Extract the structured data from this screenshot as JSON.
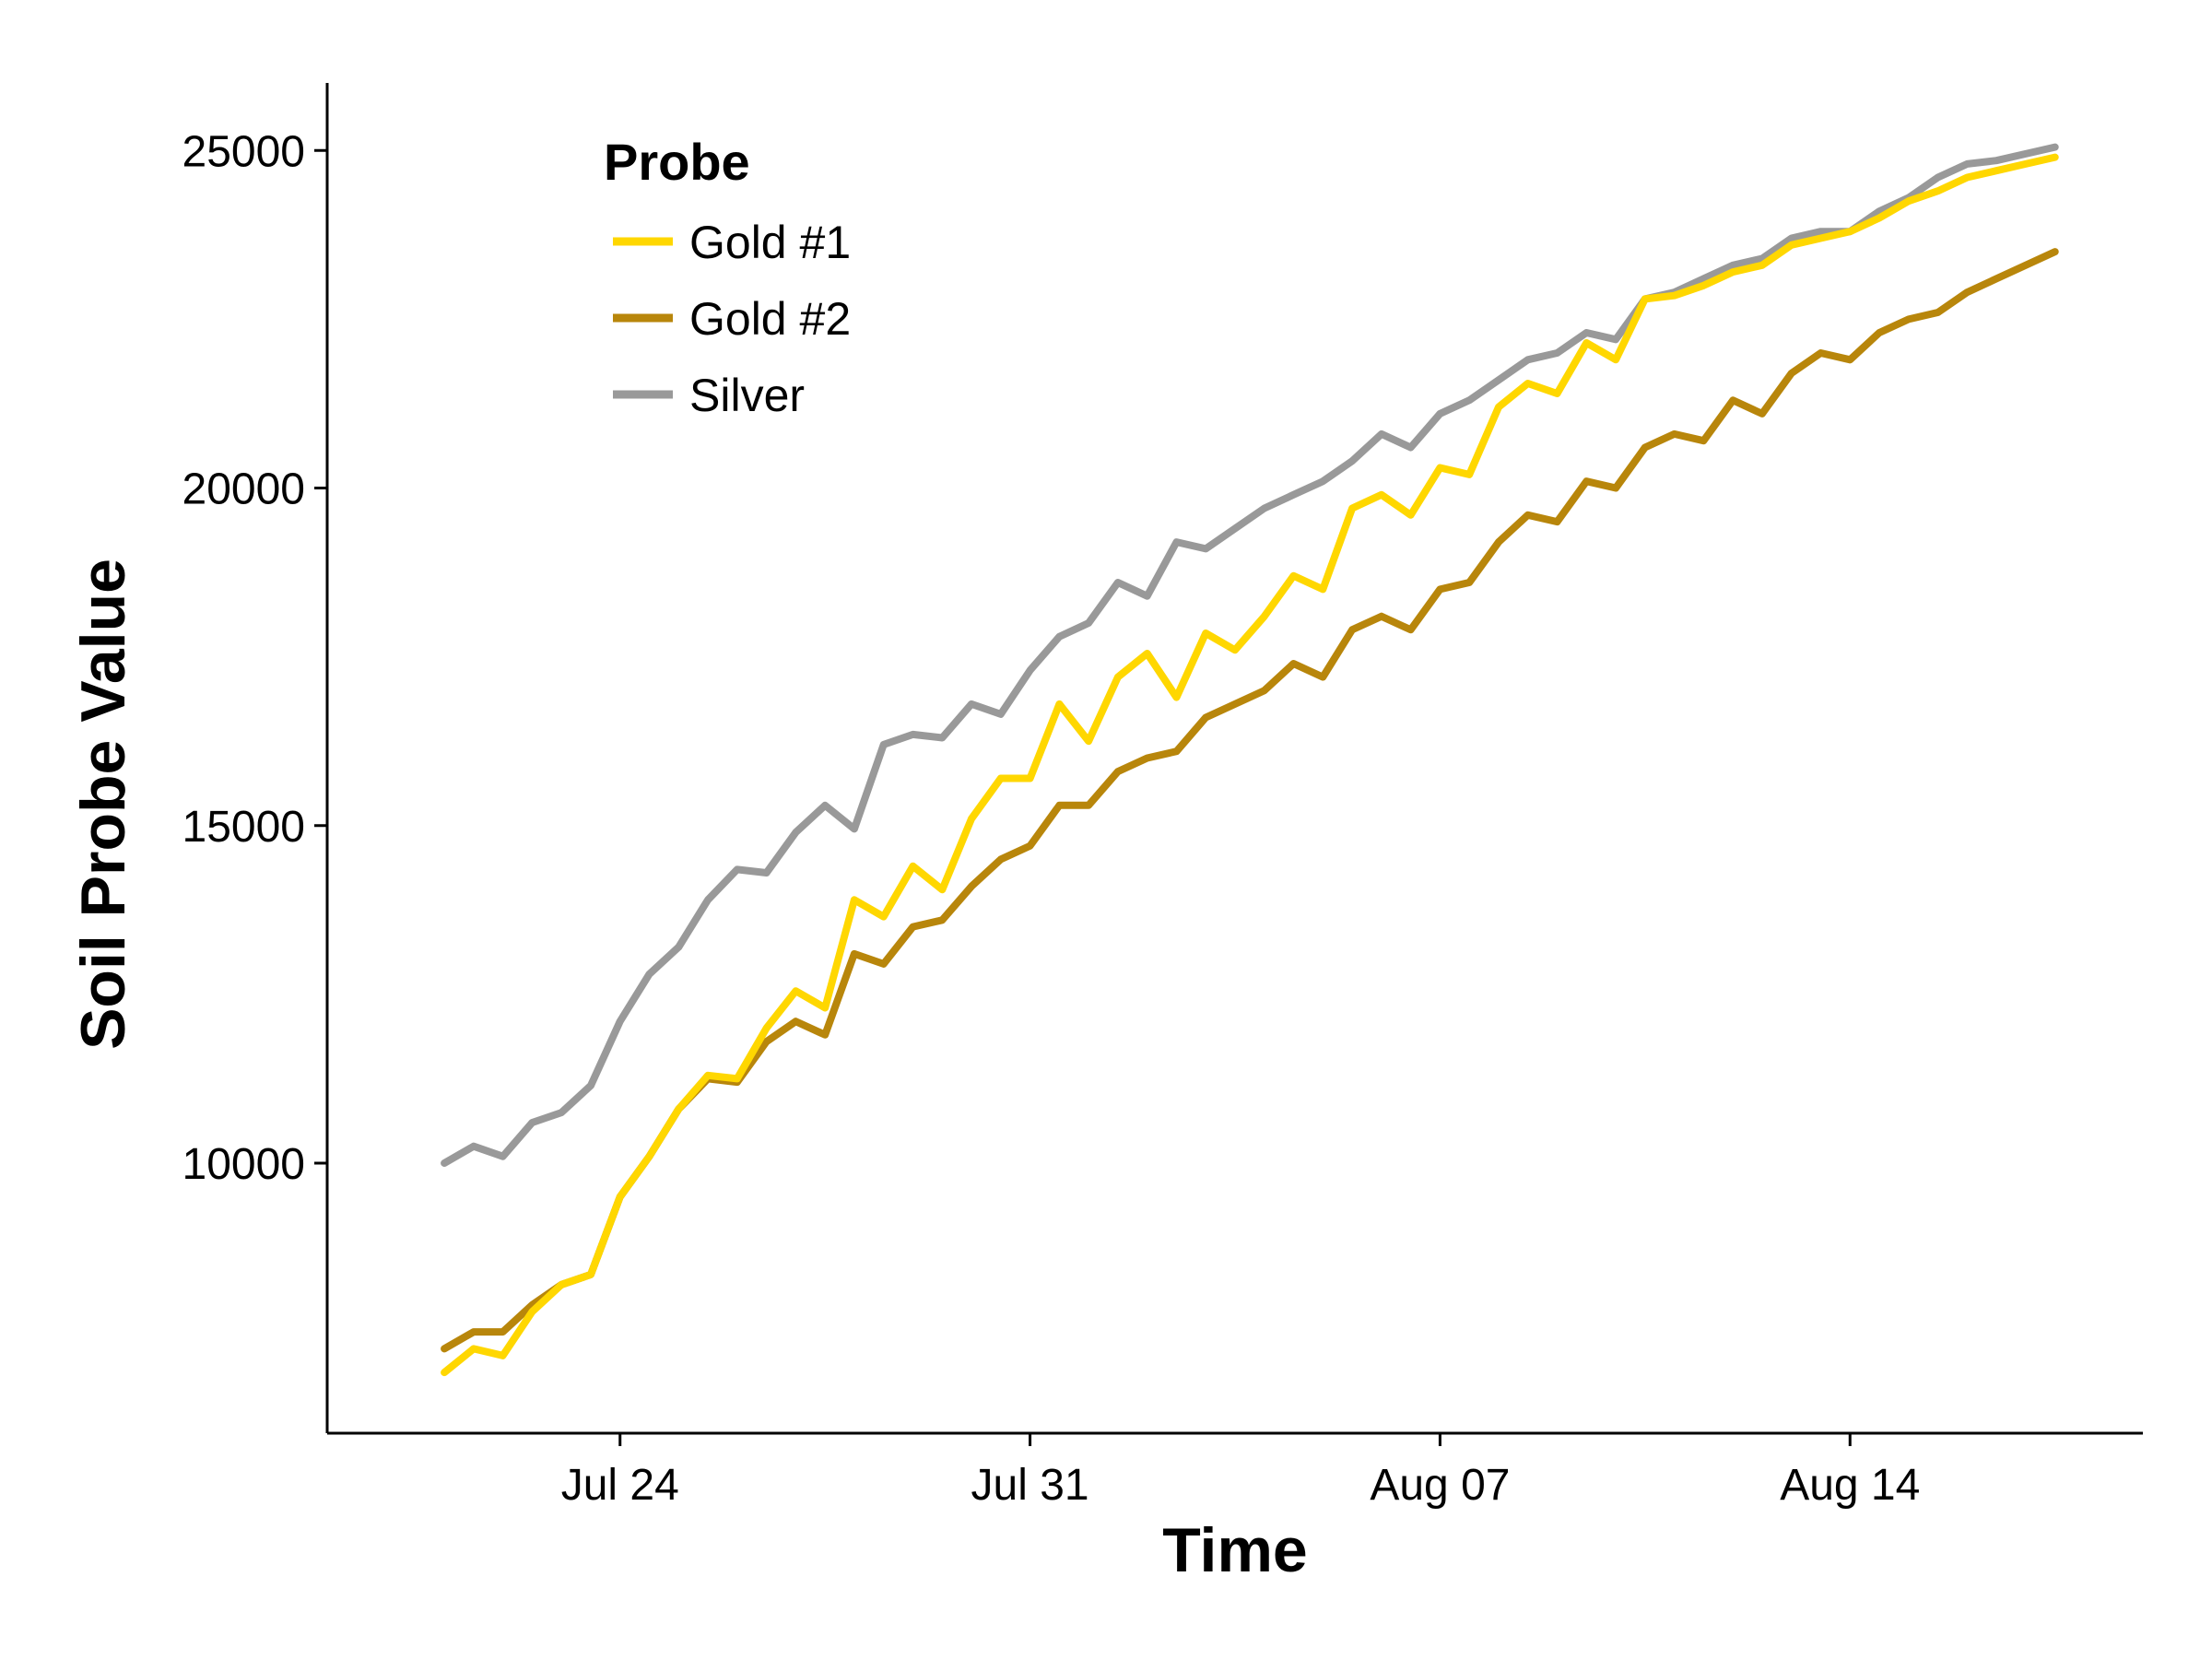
{
  "chart_data": {
    "type": "line",
    "title": "",
    "xlabel": "Time",
    "ylabel": "Soil Probe Value",
    "xlim": [
      "2023-07-19",
      "2023-08-19"
    ],
    "ylim": [
      6000,
      26000
    ],
    "x_ticks": [
      "2023-07-24",
      "2023-07-31",
      "2023-08-07",
      "2023-08-14"
    ],
    "x_tick_labels": [
      "Jul 24",
      "Jul 31",
      "Aug 07",
      "Aug 14"
    ],
    "y_ticks": [
      10000,
      15000,
      20000,
      25000
    ],
    "y_tick_labels": [
      "10000",
      "15000",
      "20000",
      "25000"
    ],
    "grid": false,
    "legend": {
      "title": "Probe",
      "position": "top-left"
    },
    "x": [
      "2023-07-21",
      "2023-07-21.5",
      "2023-07-22",
      "2023-07-22.5",
      "2023-07-23",
      "2023-07-23.5",
      "2023-07-24",
      "2023-07-24.5",
      "2023-07-25",
      "2023-07-25.5",
      "2023-07-26",
      "2023-07-26.5",
      "2023-07-27",
      "2023-07-27.5",
      "2023-07-28",
      "2023-07-28.5",
      "2023-07-29",
      "2023-07-29.5",
      "2023-07-30",
      "2023-07-30.5",
      "2023-07-31",
      "2023-07-31.5",
      "2023-08-01",
      "2023-08-01.5",
      "2023-08-02",
      "2023-08-02.5",
      "2023-08-03",
      "2023-08-03.5",
      "2023-08-04",
      "2023-08-04.5",
      "2023-08-05",
      "2023-08-05.5",
      "2023-08-06",
      "2023-08-06.5",
      "2023-08-07",
      "2023-08-07.5",
      "2023-08-08",
      "2023-08-08.5",
      "2023-08-09",
      "2023-08-09.5",
      "2023-08-10",
      "2023-08-10.5",
      "2023-08-11",
      "2023-08-11.5",
      "2023-08-12",
      "2023-08-12.5",
      "2023-08-13",
      "2023-08-13.5",
      "2023-08-14",
      "2023-08-14.5",
      "2023-08-15",
      "2023-08-15.5",
      "2023-08-16",
      "2023-08-16.5",
      "2023-08-17",
      "2023-08-17.5"
    ],
    "series": [
      {
        "name": "Gold #1",
        "color": "#FFD700",
        "values": [
          6900,
          7250,
          7150,
          7800,
          8200,
          8350,
          9500,
          10100,
          10800,
          11300,
          11250,
          12000,
          12550,
          12300,
          13900,
          13650,
          14400,
          14050,
          15100,
          15700,
          15700,
          16800,
          16250,
          17200,
          17550,
          16900,
          17850,
          17600,
          18100,
          18700,
          18500,
          19700,
          19900,
          19600,
          20300,
          20200,
          21200,
          21550,
          21400,
          22150,
          21900,
          22800,
          22850,
          23000,
          23200,
          23300,
          23600,
          23700,
          23800,
          24000,
          24250,
          24400,
          24600,
          24700,
          24800,
          24900
        ]
      },
      {
        "name": "Gold #2",
        "color": "#B8860B",
        "values": [
          7250,
          7500,
          7500,
          7900,
          8200,
          8350,
          9500,
          10100,
          10800,
          11250,
          11200,
          11800,
          12100,
          11900,
          13100,
          12950,
          13500,
          13600,
          14100,
          14500,
          14700,
          15300,
          15300,
          15800,
          16000,
          16100,
          16600,
          16800,
          17000,
          17400,
          17200,
          17900,
          18100,
          17900,
          18500,
          18600,
          19200,
          19600,
          19500,
          20100,
          20000,
          20600,
          20800,
          20700,
          21300,
          21100,
          21700,
          22000,
          21900,
          22300,
          22500,
          22600,
          22900,
          23100,
          23300,
          23500
        ]
      },
      {
        "name": "Silver",
        "color": "#999999",
        "values": [
          10000,
          10250,
          10100,
          10600,
          10750,
          11150,
          12100,
          12800,
          13200,
          13900,
          14350,
          14300,
          14900,
          15300,
          14950,
          16200,
          16350,
          16300,
          16800,
          16650,
          17300,
          17800,
          18000,
          18600,
          18400,
          19200,
          19100,
          19400,
          19700,
          19900,
          20100,
          20400,
          20800,
          20600,
          21100,
          21300,
          21600,
          21900,
          22000,
          22300,
          22200,
          22800,
          22900,
          23100,
          23300,
          23400,
          23700,
          23800,
          23800,
          24100,
          24300,
          24600,
          24800,
          24850,
          24950,
          25050
        ]
      }
    ]
  }
}
